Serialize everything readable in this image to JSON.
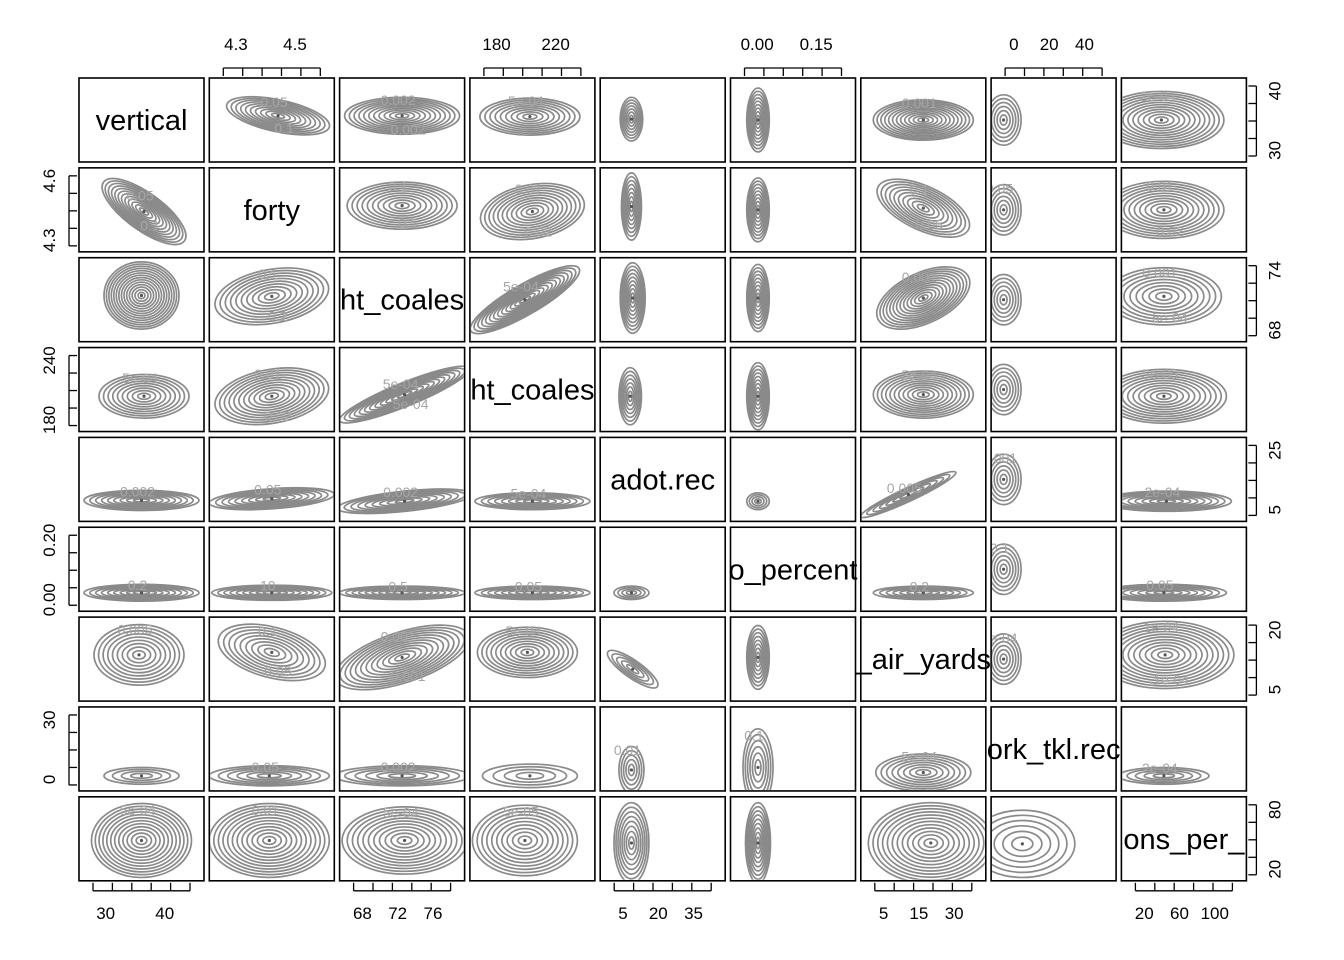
{
  "chart_data": {
    "type": "scatterplot-matrix-contour",
    "variables": [
      {
        "label": "vertical",
        "range": [
          26,
          46
        ],
        "ticks": [
          30,
          40
        ]
      },
      {
        "label": "forty",
        "range": [
          4.25,
          4.7
        ],
        "ticks": [
          4.3,
          4.5,
          4.6
        ]
      },
      {
        "label": "ht_coales",
        "range": [
          67.5,
          77
        ],
        "ticks": [
          68,
          72,
          74,
          76
        ]
      },
      {
        "label": "ht_coales",
        "range": [
          170,
          250
        ],
        "ticks": [
          180,
          220,
          240
        ]
      },
      {
        "label": "adot.rec",
        "range": [
          2,
          40
        ],
        "ticks": [
          5,
          20,
          25,
          35
        ]
      },
      {
        "label": "o_percent",
        "range": [
          -0.02,
          0.25
        ],
        "ticks": [
          0.0,
          0.15,
          0.2
        ]
      },
      {
        "label": "_air_yards",
        "range": [
          2,
          33
        ],
        "ticks": [
          5,
          15,
          20,
          30
        ]
      },
      {
        "label": "ork_tkl.rec",
        "range": [
          -2,
          52
        ],
        "ticks": [
          0,
          20,
          30,
          40
        ]
      },
      {
        "label": "ons_per_",
        "range": [
          15,
          115
        ],
        "ticks": [
          20,
          40,
          60,
          80,
          100
        ]
      }
    ],
    "axes": {
      "top": [
        {
          "column": 1,
          "ticks": [
            "4.3",
            "4.5"
          ]
        },
        {
          "column": 3,
          "ticks": [
            "180",
            "220"
          ]
        },
        {
          "column": 5,
          "ticks": [
            "0.00",
            "0.15"
          ]
        },
        {
          "column": 7,
          "ticks": [
            "0",
            "20",
            "40"
          ]
        }
      ],
      "bottom": [
        {
          "column": 0,
          "ticks": [
            "30",
            "40"
          ]
        },
        {
          "column": 2,
          "ticks": [
            "68",
            "72",
            "76"
          ]
        },
        {
          "column": 4,
          "ticks": [
            "5",
            "20",
            "35"
          ]
        },
        {
          "column": 6,
          "ticks": [
            "5",
            "15",
            "30"
          ]
        },
        {
          "column": 8,
          "ticks": [
            "20",
            "60",
            "100"
          ]
        }
      ],
      "left": [
        {
          "row": 1,
          "ticks": [
            "4.3",
            "4.6"
          ]
        },
        {
          "row": 3,
          "ticks": [
            "180",
            "240"
          ]
        },
        {
          "row": 5,
          "ticks": [
            "0.00",
            "0.20"
          ]
        },
        {
          "row": 7,
          "ticks": [
            "0",
            "30"
          ]
        }
      ],
      "right": [
        {
          "row": 0,
          "ticks": [
            "30",
            "40"
          ]
        },
        {
          "row": 2,
          "ticks": [
            "68",
            "74"
          ]
        },
        {
          "row": 4,
          "ticks": [
            "5",
            "25"
          ]
        },
        {
          "row": 6,
          "ticks": [
            "5",
            "20"
          ]
        },
        {
          "row": 8,
          "ticks": [
            "20",
            "80"
          ]
        }
      ]
    },
    "contour_labels": [
      {
        "row": 0,
        "col": 1,
        "labels": [
          "0.05",
          "0.1"
        ]
      },
      {
        "row": 0,
        "col": 2,
        "labels": [
          "0.002",
          "0.002"
        ]
      },
      {
        "row": 0,
        "col": 3,
        "labels": [
          "5e-04"
        ]
      },
      {
        "row": 0,
        "col": 6,
        "labels": [
          "0.001"
        ]
      },
      {
        "row": 0,
        "col": 8,
        "labels": [
          "2e-04"
        ]
      },
      {
        "row": 1,
        "col": 0,
        "labels": [
          "0.05",
          "0.1"
        ]
      },
      {
        "row": 1,
        "col": 2,
        "labels": [
          "0.1",
          "0.5",
          "0.1"
        ]
      },
      {
        "row": 1,
        "col": 3,
        "labels": [
          "0.01",
          "0.02"
        ]
      },
      {
        "row": 1,
        "col": 6,
        "labels": [
          "0.1",
          "0.05"
        ]
      },
      {
        "row": 1,
        "col": 7,
        "labels": [
          "0.05"
        ]
      },
      {
        "row": 1,
        "col": 8,
        "labels": [
          "0.01",
          "0.02"
        ]
      },
      {
        "row": 2,
        "col": 1,
        "labels": [
          "0.1",
          "0.2",
          "0.1"
        ]
      },
      {
        "row": 2,
        "col": 3,
        "labels": [
          "5e-04"
        ]
      },
      {
        "row": 2,
        "col": 6,
        "labels": [
          "0.001"
        ]
      },
      {
        "row": 2,
        "col": 8,
        "labels": [
          "0.001",
          "5e-04"
        ]
      },
      {
        "row": 3,
        "col": 0,
        "labels": [
          "5e-04"
        ]
      },
      {
        "row": 3,
        "col": 1,
        "labels": [
          "0.01",
          "0.02"
        ]
      },
      {
        "row": 3,
        "col": 2,
        "labels": [
          "5e-04",
          "5e-04"
        ]
      },
      {
        "row": 3,
        "col": 6,
        "labels": [
          "5e-04"
        ]
      },
      {
        "row": 3,
        "col": 8,
        "labels": [
          "5e-05"
        ]
      },
      {
        "row": 4,
        "col": 0,
        "labels": [
          "0.002"
        ]
      },
      {
        "row": 4,
        "col": 1,
        "labels": [
          "0.05"
        ]
      },
      {
        "row": 4,
        "col": 2,
        "labels": [
          "0.002"
        ]
      },
      {
        "row": 4,
        "col": 3,
        "labels": [
          "5e-04"
        ]
      },
      {
        "row": 4,
        "col": 6,
        "labels": [
          "0.005"
        ]
      },
      {
        "row": 4,
        "col": 7,
        "labels": [
          "0.001"
        ]
      },
      {
        "row": 4,
        "col": 8,
        "labels": [
          "2e-04"
        ]
      },
      {
        "row": 5,
        "col": 0,
        "labels": [
          "0.2"
        ]
      },
      {
        "row": 5,
        "col": 1,
        "labels": [
          "10"
        ]
      },
      {
        "row": 5,
        "col": 2,
        "labels": [
          "0.5"
        ]
      },
      {
        "row": 5,
        "col": 3,
        "labels": [
          "0.05"
        ]
      },
      {
        "row": 5,
        "col": 6,
        "labels": [
          "0.2"
        ]
      },
      {
        "row": 5,
        "col": 7,
        "labels": [
          "0.1"
        ]
      },
      {
        "row": 5,
        "col": 8,
        "labels": [
          "0.05"
        ]
      },
      {
        "row": 6,
        "col": 0,
        "labels": [
          "0.005"
        ]
      },
      {
        "row": 6,
        "col": 1,
        "labels": [
          "0.1",
          "0.05"
        ]
      },
      {
        "row": 6,
        "col": 2,
        "labels": [
          "0.001",
          "0.001"
        ]
      },
      {
        "row": 6,
        "col": 3,
        "labels": [
          "5e-04"
        ]
      },
      {
        "row": 6,
        "col": 7,
        "labels": [
          "5e-04"
        ]
      },
      {
        "row": 6,
        "col": 8,
        "labels": [
          "1e-04",
          "1e-04"
        ]
      },
      {
        "row": 7,
        "col": 1,
        "labels": [
          "0.05"
        ]
      },
      {
        "row": 7,
        "col": 2,
        "labels": [
          "0.002"
        ]
      },
      {
        "row": 7,
        "col": 4,
        "labels": [
          "0.01"
        ]
      },
      {
        "row": 7,
        "col": 5,
        "labels": [
          "0.1"
        ]
      },
      {
        "row": 7,
        "col": 6,
        "labels": [
          "5e-04"
        ]
      },
      {
        "row": 7,
        "col": 8,
        "labels": [
          "2e-04"
        ]
      },
      {
        "row": 8,
        "col": 0,
        "labels": [
          "5e-04"
        ]
      },
      {
        "row": 8,
        "col": 1,
        "labels": [
          "0.01"
        ]
      },
      {
        "row": 8,
        "col": 2,
        "labels": [
          "5e-04"
        ]
      },
      {
        "row": 8,
        "col": 3,
        "labels": [
          "5e-05"
        ]
      }
    ]
  }
}
